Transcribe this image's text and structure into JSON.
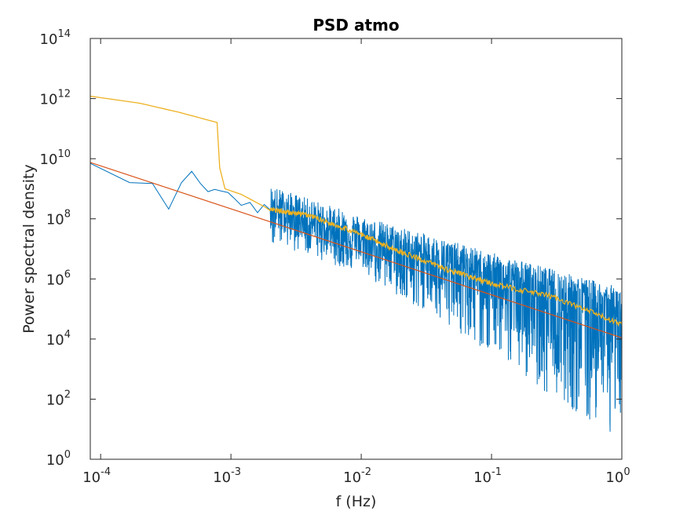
{
  "chart_data": {
    "type": "line",
    "title": "PSD atmo",
    "xlabel": "f (Hz)",
    "ylabel": "Power spectral density",
    "xscale": "log",
    "yscale": "log",
    "xlim": [
      8.33e-05,
      1
    ],
    "ylim": [
      1,
      100000000000000
    ],
    "grid": false,
    "legend": "none",
    "x_ticks": [
      {
        "base": "10",
        "exp": "-4",
        "value": 0.0001
      },
      {
        "base": "10",
        "exp": "-3",
        "value": 0.001
      },
      {
        "base": "10",
        "exp": "-2",
        "value": 0.01
      },
      {
        "base": "10",
        "exp": "-1",
        "value": 0.1
      },
      {
        "base": "10",
        "exp": "0",
        "value": 1
      }
    ],
    "y_ticks": [
      {
        "base": "10",
        "exp": "0",
        "value": 1
      },
      {
        "base": "10",
        "exp": "2",
        "value": 100
      },
      {
        "base": "10",
        "exp": "4",
        "value": 10000
      },
      {
        "base": "10",
        "exp": "6",
        "value": 1000000
      },
      {
        "base": "10",
        "exp": "8",
        "value": 100000000
      },
      {
        "base": "10",
        "exp": "10",
        "value": 10000000000
      },
      {
        "base": "10",
        "exp": "12",
        "value": 1000000000000
      },
      {
        "base": "10",
        "exp": "14",
        "value": 100000000000000
      }
    ],
    "series": [
      {
        "color": "#0072BD",
        "style": "noisy periodogram",
        "x": [
          8.33e-05,
          0.000167,
          0.00025,
          0.000333,
          0.000417,
          0.0005,
          0.000583,
          0.000667,
          0.00075,
          0.000833,
          0.00095,
          0.00105,
          0.0012,
          0.0014,
          0.0016,
          0.0018,
          0.002
        ],
        "y": [
          7000000000,
          1600000000,
          1500000000,
          210000000,
          1600000000,
          3800000000,
          1500000000,
          800000000,
          950000000,
          850000000,
          750000000,
          500000000,
          280000000,
          350000000,
          160000000,
          300000000,
          200000000
        ],
        "noise_trend_y_at_x": [
          [
            0.002,
            200000000
          ],
          [
            0.01,
            20000000
          ],
          [
            0.1,
            1200000
          ],
          [
            1,
            80000
          ]
        ],
        "noise_min_y_at_x": [
          [
            0.002,
            15000000
          ],
          [
            0.01,
            1500000
          ],
          [
            0.1,
            3000
          ],
          [
            1,
            3
          ]
        ]
      },
      {
        "color": "#D95319",
        "style": "power-law fit",
        "x": [
          8.33e-05,
          1
        ],
        "y": [
          7500000000,
          11000
        ]
      },
      {
        "color": "#EDB120",
        "style": "smoothed spectrum",
        "x": [
          8.33e-05,
          0.0002,
          0.0004,
          0.000783,
          0.00082,
          0.0009,
          0.0012,
          0.002,
          0.004,
          0.01,
          0.02,
          0.05,
          0.1,
          0.3,
          1
        ],
        "y": [
          1200000000000,
          700000000000,
          350000000000,
          160000000000,
          5000000000,
          1000000000,
          650000000,
          200000000,
          130000000,
          30000000,
          8000000,
          1800000,
          700000,
          250000,
          30000
        ]
      }
    ]
  }
}
